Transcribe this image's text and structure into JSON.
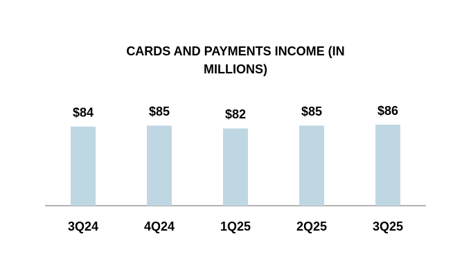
{
  "chart_data": {
    "type": "bar",
    "title": "CARDS AND PAYMENTS INCOME (IN MILLIONS)",
    "categories": [
      "3Q24",
      "4Q24",
      "1Q25",
      "2Q25",
      "3Q25"
    ],
    "values": [
      84,
      85,
      82,
      85,
      86
    ],
    "value_labels": [
      "$84",
      "$85",
      "$82",
      "$85",
      "$86"
    ],
    "color": "#bfd7e3",
    "ylim": [
      0,
      100
    ]
  }
}
